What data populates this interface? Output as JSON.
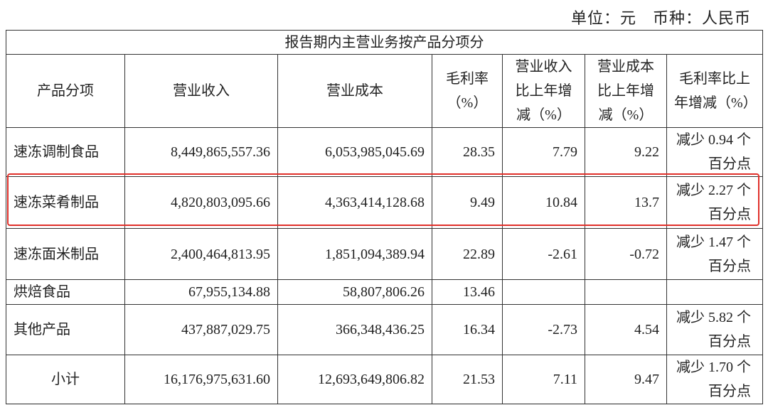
{
  "unit_note": "单位：元　币种：人民币",
  "table": {
    "caption": "报告期内主营业务按产品分项分",
    "columns": [
      "产品分项",
      "营业收入",
      "营业成本",
      "毛利率\n（%）",
      "营业收入\n比上年增\n减（%）",
      "营业成本\n比上年增\n减（%）",
      "毛利率比上\n年增减（%）"
    ],
    "rows": [
      [
        "速冻调制食品",
        "8,449,865,557.36",
        "6,053,985,045.69",
        "28.35",
        "7.79",
        "9.22",
        "减少 0.94 个\n百分点"
      ],
      [
        "速冻菜肴制品",
        "4,820,803,095.66",
        "4,363,414,128.68",
        "9.49",
        "10.84",
        "13.7",
        "减少 2.27 个\n百分点"
      ],
      [
        "速冻面米制品",
        "2,400,464,813.95",
        "1,851,094,389.94",
        "22.89",
        "-2.61",
        "-0.72",
        "减少 1.47 个\n百分点"
      ],
      [
        "烘焙食品",
        "67,955,134.88",
        "58,807,806.26",
        "13.46",
        null,
        null,
        null
      ],
      [
        "其他产品",
        "437,887,029.75",
        "366,348,436.25",
        "16.34",
        "-2.73",
        "4.54",
        "减少 5.82 个\n百分点"
      ],
      [
        "小计",
        "16,176,975,631.60",
        "12,693,649,806.82",
        "21.53",
        "7.11",
        "9.47",
        "减少 1.70 个\n百分点"
      ]
    ]
  }
}
